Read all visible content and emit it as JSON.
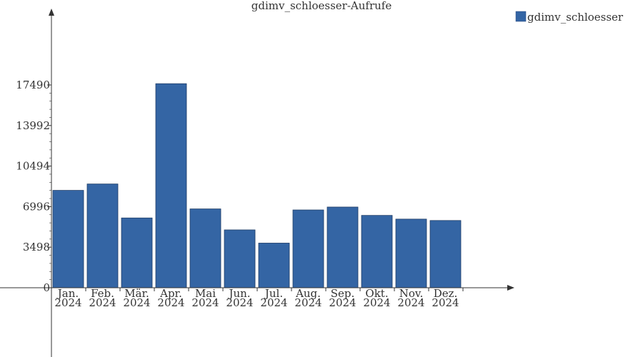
{
  "chart_data": {
    "type": "bar",
    "title": "gdimv_schloesser-Aufrufe",
    "xlabel": "",
    "ylabel": "",
    "categories": [
      [
        "Jan.",
        "2024"
      ],
      [
        "Feb.",
        "2024"
      ],
      [
        "Mär.",
        "2024"
      ],
      [
        "Apr.",
        "2024"
      ],
      [
        "Mai",
        "2024"
      ],
      [
        "Jun.",
        "2024"
      ],
      [
        "Jul.",
        "2024"
      ],
      [
        "Aug.",
        "2024"
      ],
      [
        "Sep.",
        "2024"
      ],
      [
        "Okt.",
        "2024"
      ],
      [
        "Nov.",
        "2024"
      ],
      [
        "Dez.",
        "2024"
      ]
    ],
    "series": [
      {
        "name": "gdimv_schloesser",
        "color": "#3465a4",
        "values": [
          8400,
          8950,
          6020,
          17600,
          6800,
          4990,
          3850,
          6710,
          6960,
          6240,
          5920,
          5800
        ]
      }
    ],
    "y_ticks": [
      0,
      3498,
      6996,
      10494,
      13992,
      17490
    ],
    "y_tick_labels": [
      "0",
      "3498",
      "6996",
      "10494",
      "13992",
      "17490"
    ],
    "ylim": [
      0,
      17490
    ],
    "legend_position": "top-right",
    "grid": false
  }
}
